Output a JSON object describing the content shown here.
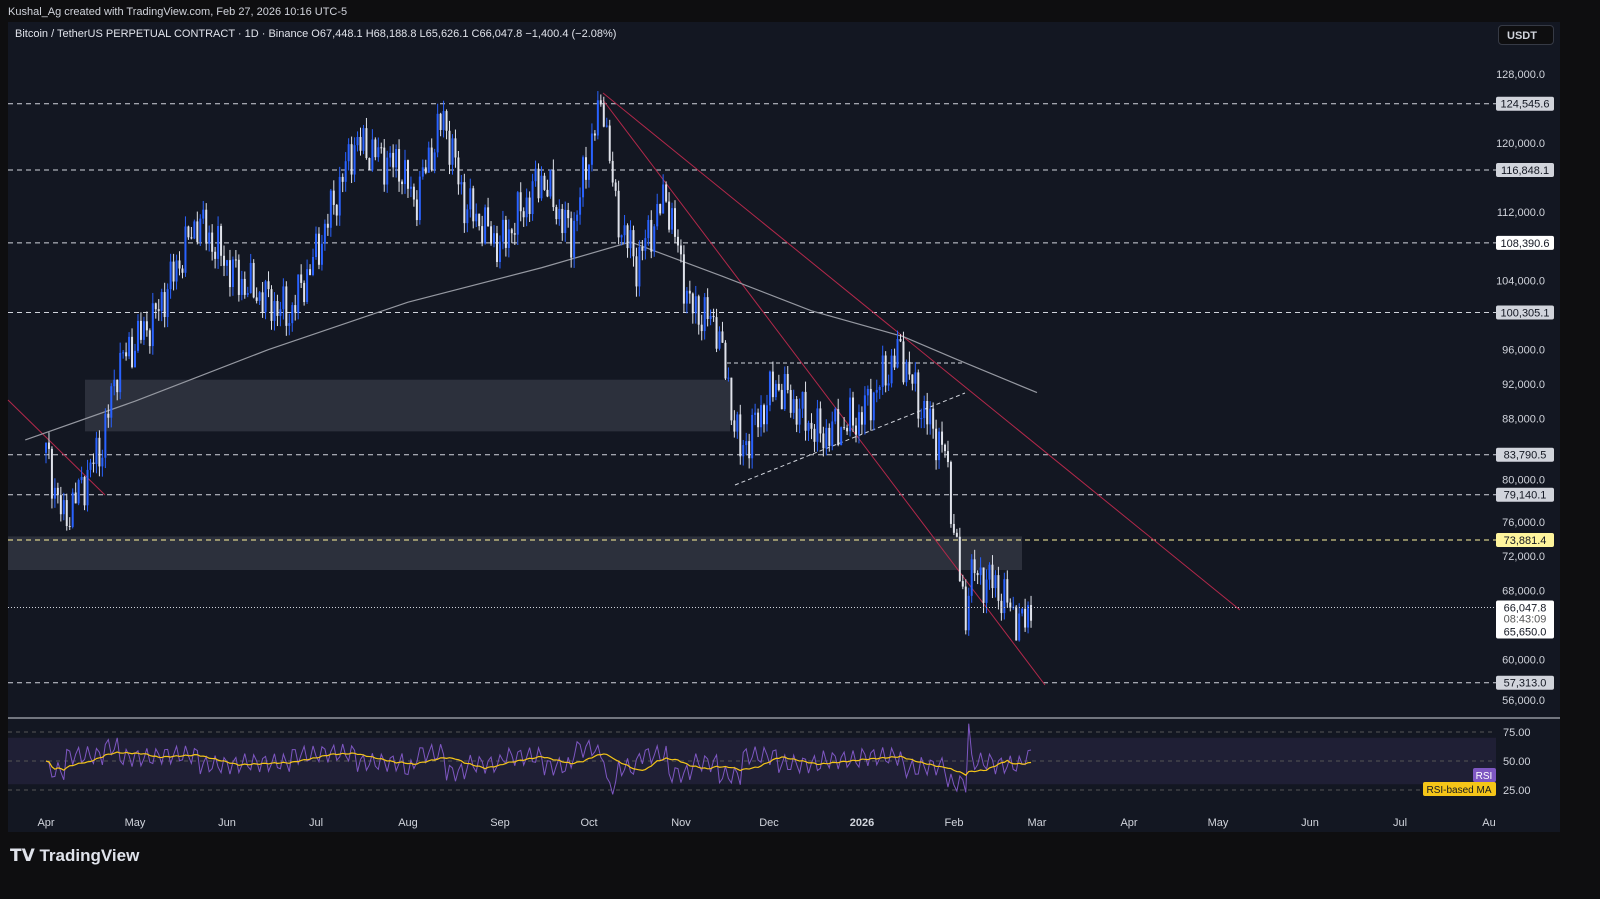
{
  "credit": "Kushal_Ag created with TradingView.com, Feb 27, 2026 10:16 UTC-5",
  "legend": "Bitcoin / TetherUS PERPETUAL CONTRACT · 1D · Binance  O67,448.1  H68,188.8  L65,626.1  C66,047.8  −1,400.4 (−2.08%)",
  "currency": "USDT",
  "logo": "TradingView",
  "colors": {
    "up": "#2962ff",
    "down": "#e0e3eb",
    "ma": "#9598a1",
    "rsi": "#7e57c2",
    "rsi_ma": "#f5c518",
    "trend": "#b2284a",
    "highlight": "#fff59d"
  },
  "chart_data": [
    {
      "type": "candlestick",
      "interval": "1D",
      "symbol": "BTCUSDT.P",
      "ylim": [
        54000,
        130000
      ],
      "yticks": [
        128000,
        120000,
        112000,
        104000,
        96000,
        92000,
        88000,
        80000,
        76000,
        72000,
        68000,
        60000,
        56000
      ],
      "ytick_labels": [
        "128,000.0",
        "120,000.0",
        "112,000.0",
        "104,000.0",
        "96,000.0",
        "92,000.0",
        "88,000.0",
        "80,000.0",
        "76,000.0",
        "72,000.0",
        "68,000.0",
        "60,000.0",
        "56,000.0"
      ],
      "xticks": [
        "Apr",
        "May",
        "Jun",
        "Jul",
        "Aug",
        "Sep",
        "Oct",
        "Nov",
        "Dec",
        "2026",
        "Feb",
        "Mar",
        "Apr",
        "May",
        "Jun",
        "Jul",
        "Au"
      ],
      "price_path": [
        [
          "2025-04-01",
          84000
        ],
        [
          "2025-04-07",
          76000
        ],
        [
          "2025-04-20",
          85000
        ],
        [
          "2025-04-25",
          94000
        ],
        [
          "2025-05-08",
          100000
        ],
        [
          "2025-05-22",
          111000
        ],
        [
          "2025-06-05",
          104000
        ],
        [
          "2025-06-22",
          100000
        ],
        [
          "2025-07-01",
          107000
        ],
        [
          "2025-07-10",
          116000
        ],
        [
          "2025-07-14",
          120000
        ],
        [
          "2025-07-30",
          117000
        ],
        [
          "2025-08-03",
          113000
        ],
        [
          "2025-08-13",
          123000
        ],
        [
          "2025-08-20",
          113000
        ],
        [
          "2025-09-01",
          108000
        ],
        [
          "2025-09-15",
          116000
        ],
        [
          "2025-09-25",
          109000
        ],
        [
          "2025-10-03",
          122000
        ],
        [
          "2025-10-06",
          124500
        ],
        [
          "2025-10-10",
          112000
        ],
        [
          "2025-10-17",
          106000
        ],
        [
          "2025-10-27",
          114000
        ],
        [
          "2025-11-04",
          101000
        ],
        [
          "2025-11-13",
          99000
        ],
        [
          "2025-11-21",
          84000
        ],
        [
          "2025-12-03",
          92000
        ],
        [
          "2025-12-18",
          86000
        ],
        [
          "2025-12-31",
          88000
        ],
        [
          "2026-01-14",
          96000
        ],
        [
          "2026-01-20",
          90000
        ],
        [
          "2026-01-29",
          84000
        ],
        [
          "2026-02-05",
          64000
        ],
        [
          "2026-02-06",
          70000
        ],
        [
          "2026-02-14",
          69000
        ],
        [
          "2026-02-24",
          64000
        ],
        [
          "2026-02-27",
          66047.8
        ]
      ],
      "ma200": [
        [
          "2025-03-25",
          85500
        ],
        [
          "2025-05-01",
          90000
        ],
        [
          "2025-06-15",
          96000
        ],
        [
          "2025-08-01",
          101500
        ],
        [
          "2025-09-15",
          105500
        ],
        [
          "2025-10-15",
          108500
        ],
        [
          "2025-11-15",
          104500
        ],
        [
          "2025-12-15",
          100500
        ],
        [
          "2026-01-15",
          97500
        ],
        [
          "2026-02-01",
          95000
        ],
        [
          "2026-03-01",
          91000
        ]
      ],
      "levels": [
        {
          "label": "124,545.6",
          "value": 124545.6
        },
        {
          "label": "116,848.1",
          "value": 116848.1
        },
        {
          "label": "108,390.6",
          "value": 108390.6
        },
        {
          "label": "100,305.1",
          "value": 100305.1
        },
        {
          "label": "83,790.5",
          "value": 83790.5
        },
        {
          "label": "79,140.1",
          "value": 79140.1
        },
        {
          "label": "73,881.4",
          "value": 73881.4,
          "highlight": true
        },
        {
          "label": "57,313.0",
          "value": 57313.0
        }
      ],
      "last_price": {
        "price": "66,047.8",
        "countdown": "08:43:09",
        "low": "65,650.0"
      },
      "zones": [
        [
          86500,
          92500
        ],
        [
          70400,
          74300
        ]
      ]
    },
    {
      "type": "line",
      "title": "RSI",
      "series": [
        {
          "name": "RSI"
        },
        {
          "name": "RSI-based MA"
        }
      ],
      "ylim": [
        0,
        100
      ],
      "yticks": [
        "75.00",
        "50.00",
        "25.00"
      ],
      "band": [
        30,
        70
      ]
    }
  ]
}
